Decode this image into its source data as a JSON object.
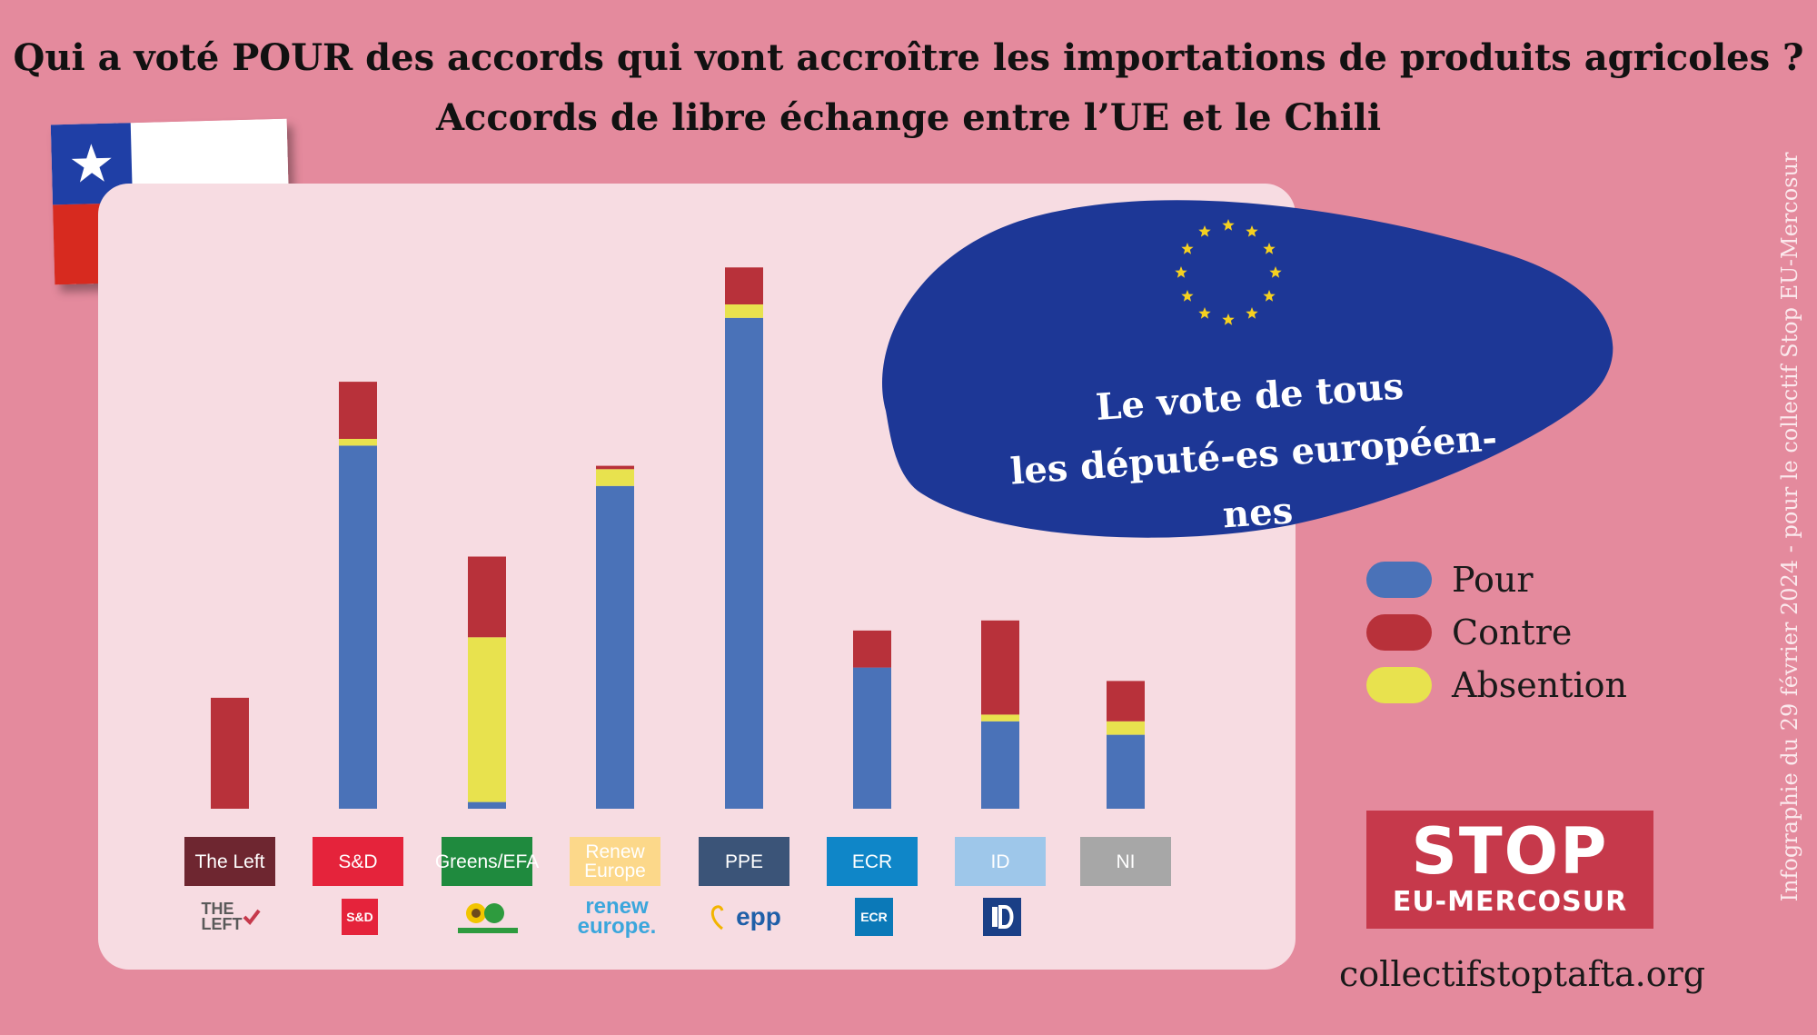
{
  "title": "Qui a voté POUR des accords qui vont accroître les importations de produits agricoles ?",
  "subtitle": "Accords de libre échange entre l’UE et le Chili",
  "bubble": {
    "line1": "Le vote de tous",
    "line2": "les député-es européen-nes"
  },
  "side_credit": "Infographie du 29 février 2024 - pour le collectif Stop EU-Mercosur",
  "stop_logo": {
    "big": "STOP",
    "small": "EU-MERCOSUR"
  },
  "website": "collectifstoptafta.org",
  "colors": {
    "pour": "#4a72b8",
    "contre": "#b8313a",
    "abstention": "#e8e24e",
    "background": "#e48a9d",
    "panel": "#f7dce2",
    "bubble": "#1d3796"
  },
  "chart_data": {
    "type": "bar",
    "stacked": true,
    "categories": [
      "The Left",
      "S&D",
      "Greens/EFA",
      "Renew Europe",
      "PPE",
      "ECR",
      "ID",
      "NI"
    ],
    "series": [
      {
        "name": "Pour",
        "values": [
          0,
          108,
          2,
          96,
          146,
          42,
          26,
          22
        ]
      },
      {
        "name": "Contre",
        "values": [
          33,
          17,
          24,
          1,
          11,
          11,
          28,
          12
        ]
      },
      {
        "name": "Absention",
        "values": [
          0,
          2,
          49,
          5,
          4,
          0,
          2,
          4
        ]
      }
    ],
    "stack_order": [
      "Pour",
      "Absention",
      "Contre"
    ],
    "ylim": [
      0,
      170
    ],
    "legend_position": "right",
    "grid": false
  },
  "groups": [
    {
      "label": "The Left",
      "label_bg": "#6e2630",
      "label_color": "#ffffff",
      "logo": "The Left logo"
    },
    {
      "label": "S&D",
      "label_bg": "#e5233b",
      "label_color": "#ffffff",
      "logo": "S&D logo"
    },
    {
      "label": "Greens/EFA",
      "label_bg": "#1f8a3e",
      "label_color": "#ffffff",
      "logo": "Greens/EFA logo"
    },
    {
      "label": "Renew Europe",
      "label_bg": "#fcd88a",
      "label_color": "#ffffff",
      "logo": "renew europe."
    },
    {
      "label": "PPE",
      "label_bg": "#3b5478",
      "label_color": "#ffffff",
      "logo": "epp"
    },
    {
      "label": "ECR",
      "label_bg": "#0f86c8",
      "label_color": "#ffffff",
      "logo": "ECR logo"
    },
    {
      "label": "ID",
      "label_bg": "#9ec7ea",
      "label_color": "#ffffff",
      "logo": "ID logo"
    },
    {
      "label": "NI",
      "label_bg": "#a7a7a7",
      "label_color": "#ffffff",
      "logo": ""
    }
  ],
  "logos": {
    "left": [
      "THE",
      "LEFT"
    ],
    "sd": "S&D",
    "renew": [
      "renew",
      "europe."
    ],
    "epp": "epp",
    "ecr": "ECR"
  }
}
